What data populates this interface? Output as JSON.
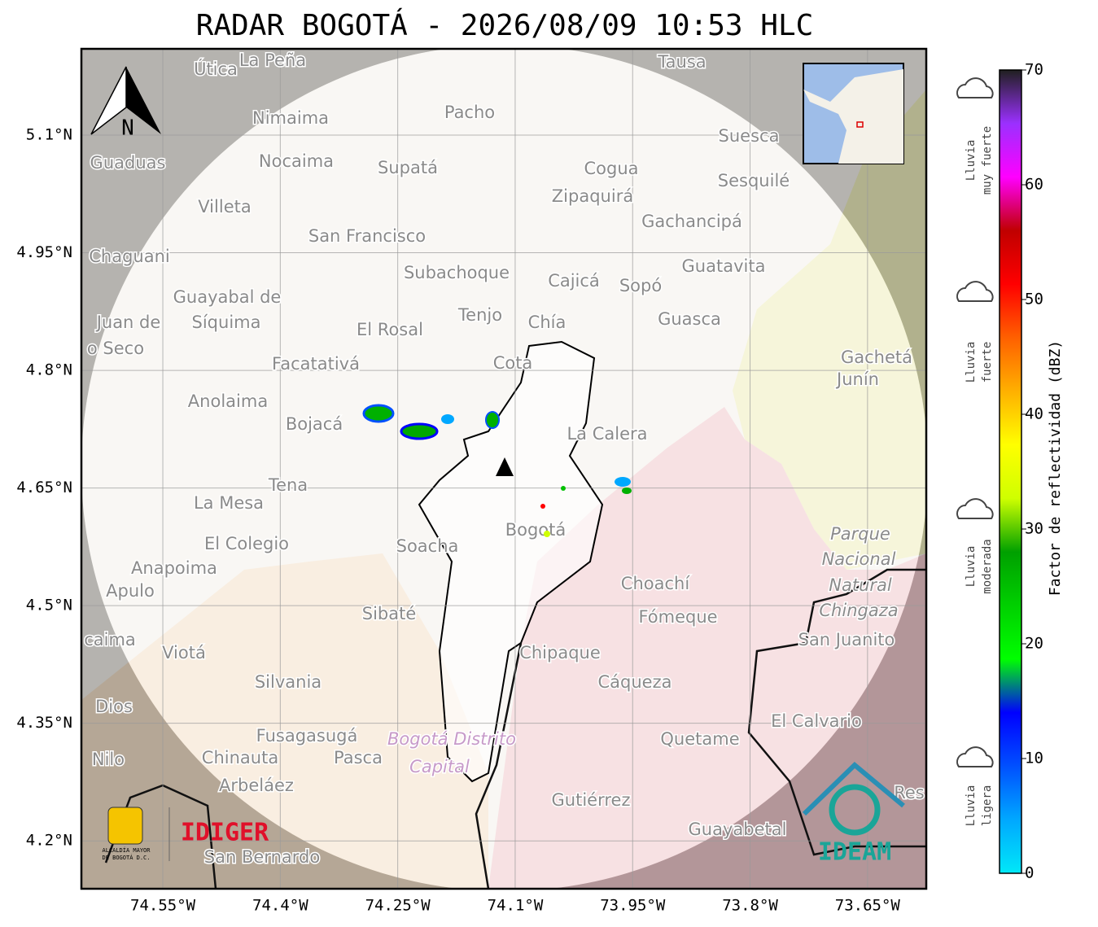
{
  "title": "RADAR BOGOTÁ - 2026/08/09 10:53 HLC",
  "map": {
    "xlim": [
      -74.654,
      -73.575
    ],
    "ylim": [
      4.139,
      5.21
    ],
    "lat_ticks": [
      {
        "value": 5.1,
        "label": "5.1°N"
      },
      {
        "value": 4.95,
        "label": "4.95°N"
      },
      {
        "value": 4.8,
        "label": "4.8°N"
      },
      {
        "value": 4.65,
        "label": "4.65°N"
      },
      {
        "value": 4.5,
        "label": "4.5°N"
      },
      {
        "value": 4.35,
        "label": "4.35°N"
      },
      {
        "value": 4.2,
        "label": "4.2°N"
      }
    ],
    "lon_ticks": [
      {
        "value": -74.55,
        "label": "74.55°W"
      },
      {
        "value": -74.4,
        "label": "74.4°W"
      },
      {
        "value": -74.25,
        "label": "74.25°W"
      },
      {
        "value": -74.1,
        "label": "74.1°W"
      },
      {
        "value": -73.95,
        "label": "73.95°W"
      },
      {
        "value": -73.8,
        "label": "73.8°W"
      },
      {
        "value": -73.65,
        "label": "73.65°W"
      }
    ],
    "grid": true,
    "north": "N",
    "places": [
      "Útica",
      "La Peña",
      "Tausa",
      "Pacho",
      "Nimaima",
      "Guaduas",
      "Nocaima",
      "Supatá",
      "Cogua",
      "Suesca",
      "Sesquilé",
      "Zipaquirá",
      "Villeta",
      "Gachancipá",
      "San Francisco",
      "Chaguani",
      "Guatavita",
      "Subachoque",
      "Cajicá",
      "Sopó",
      "Guayabal de",
      "Síquima",
      "Juan de",
      "o Seco",
      "Tenjo",
      "Chía",
      "Guasca",
      "El Rosal",
      "Gachetá",
      "Junín",
      "Facatativá",
      "Cota",
      "Anolaima",
      "Bojacá",
      "La Calera",
      "Tena",
      "La Mesa",
      "Parque",
      "Bogotá",
      "El Colegio",
      "Soacha",
      "Nacional",
      "Anapoima",
      "Natural",
      "Choachí",
      "Apulo",
      "Chingaza",
      "Sibaté",
      "Fómeque",
      "San Juanito",
      "caima",
      "Viotá",
      "Chipaque",
      "Silvania",
      "Cáqueza",
      "Dios",
      "El Calvario",
      "Fusagasugá",
      "Bogotá Distrito",
      "Quetame",
      "Nilo",
      "Chinauta",
      "Pasca",
      "Capital",
      "Arbeláez",
      "Gutiérrez",
      "Res",
      "Guayabetal",
      "San Bernardo"
    ]
  },
  "colorbar": {
    "label": "Factor de reflectividad (dBZ)",
    "lim": [
      0,
      70
    ],
    "ticks": [
      0,
      10,
      20,
      30,
      40,
      50,
      60,
      70
    ],
    "colors": [
      "#00e8f8",
      "#00a8ff",
      "#0050ff",
      "#0000ff",
      "#00ff00",
      "#00d000",
      "#00a000",
      "#cfff00",
      "#ffff00",
      "#ffb000",
      "#ff6000",
      "#ff0000",
      "#c00000",
      "#ff00ff",
      "#9b30ff",
      "#202020"
    ]
  },
  "intensity_levels": [
    [
      "Lluvia",
      "muy fuerte"
    ],
    [
      "Lluvia",
      "fuerte"
    ],
    [
      "Lluvia",
      "moderada"
    ],
    [
      "Lluvia",
      "ligera"
    ]
  ],
  "logos": {
    "idiger": "IDIGER",
    "alcaldia": [
      "ALCALDÍA MAYOR",
      "DE BOGOTÁ D.C."
    ],
    "ideam": "IDEAM"
  }
}
